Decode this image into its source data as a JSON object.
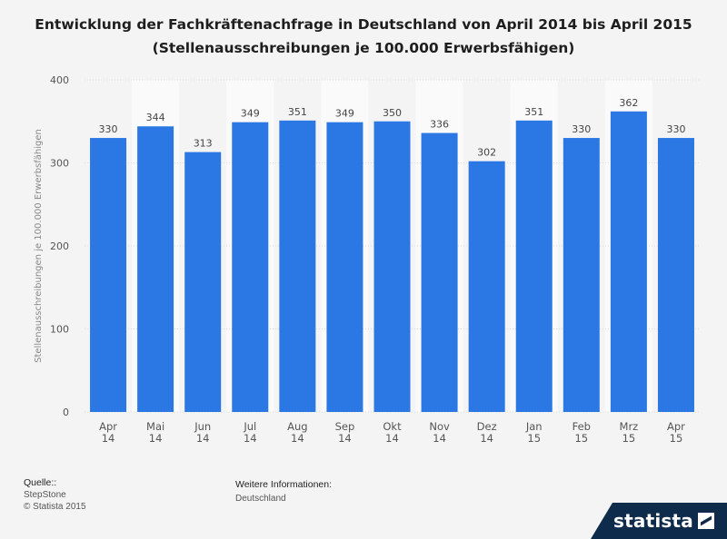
{
  "title": "Entwicklung der Fachkräftenachfrage in Deutschland von April 2014 bis April 2015 (Stellenausschreibungen je 100.000 Erwerbsfähigen)",
  "footer": {
    "source_label": "Quelle::",
    "source": "StepStone",
    "copyright": "© Statista 2015",
    "info_label": "Weitere Informationen:",
    "info": "Deutschland"
  },
  "brand": "statista",
  "colors": {
    "bar": "#2b78e4",
    "band": "#fafafa",
    "background": "#f4f4f4"
  },
  "chart_data": {
    "type": "bar",
    "categories": [
      [
        "Apr",
        "14"
      ],
      [
        "Mai",
        "14"
      ],
      [
        "Jun",
        "14"
      ],
      [
        "Jul",
        "14"
      ],
      [
        "Aug",
        "14"
      ],
      [
        "Sep",
        "14"
      ],
      [
        "Okt",
        "14"
      ],
      [
        "Nov",
        "14"
      ],
      [
        "Dez",
        "14"
      ],
      [
        "Jan",
        "15"
      ],
      [
        "Feb",
        "15"
      ],
      [
        "Mrz",
        "15"
      ],
      [
        "Apr",
        "15"
      ]
    ],
    "values": [
      330,
      344,
      313,
      349,
      351,
      349,
      350,
      336,
      302,
      351,
      330,
      362,
      330
    ],
    "ylabel": "Stellenausschreibungen je 100.000 Erwerbsfähigen",
    "xlabel": "",
    "ylim": [
      0,
      400
    ],
    "yticks": [
      0,
      100,
      200,
      300,
      400
    ],
    "grid": true
  }
}
